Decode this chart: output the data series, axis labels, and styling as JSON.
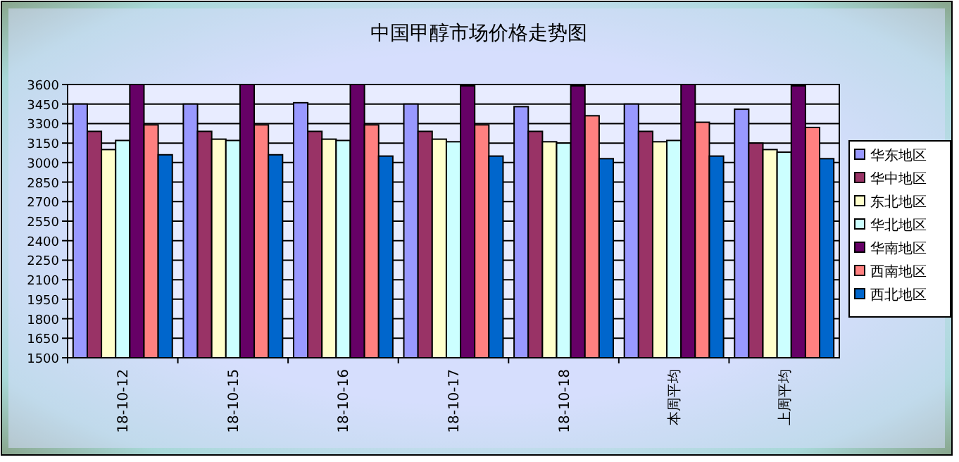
{
  "chart_data": {
    "type": "bar",
    "title": "中国甲醇市场价格走势图",
    "categories": [
      "18-10-12",
      "18-10-15",
      "18-10-16",
      "18-10-17",
      "18-10-18",
      "本周平均",
      "上周平均"
    ],
    "series": [
      {
        "name": "华东地区",
        "color": "#9999ff",
        "values": [
          3450,
          3450,
          3460,
          3450,
          3430,
          3450,
          3410
        ]
      },
      {
        "name": "华中地区",
        "color": "#993366",
        "values": [
          3240,
          3240,
          3240,
          3240,
          3240,
          3240,
          3150
        ]
      },
      {
        "name": "东北地区",
        "color": "#ffffcc",
        "values": [
          3100,
          3180,
          3180,
          3180,
          3160,
          3160,
          3100
        ]
      },
      {
        "name": "华北地区",
        "color": "#ccffff",
        "values": [
          3170,
          3170,
          3170,
          3160,
          3150,
          3170,
          3080
        ]
      },
      {
        "name": "华南地区",
        "color": "#660066",
        "values": [
          3600,
          3600,
          3600,
          3590,
          3590,
          3600,
          3590
        ]
      },
      {
        "name": "西南地区",
        "color": "#ff8080",
        "values": [
          3290,
          3290,
          3290,
          3290,
          3360,
          3310,
          3270
        ]
      },
      {
        "name": "西北地区",
        "color": "#0066cc",
        "values": [
          3060,
          3060,
          3050,
          3050,
          3030,
          3050,
          3030
        ]
      }
    ],
    "ylim": [
      1500,
      3600
    ],
    "yticks": [
      1500,
      1650,
      1800,
      1950,
      2100,
      2250,
      2400,
      2550,
      2700,
      2850,
      3000,
      3150,
      3300,
      3450,
      3600
    ],
    "grid": "y",
    "legend": "right"
  }
}
